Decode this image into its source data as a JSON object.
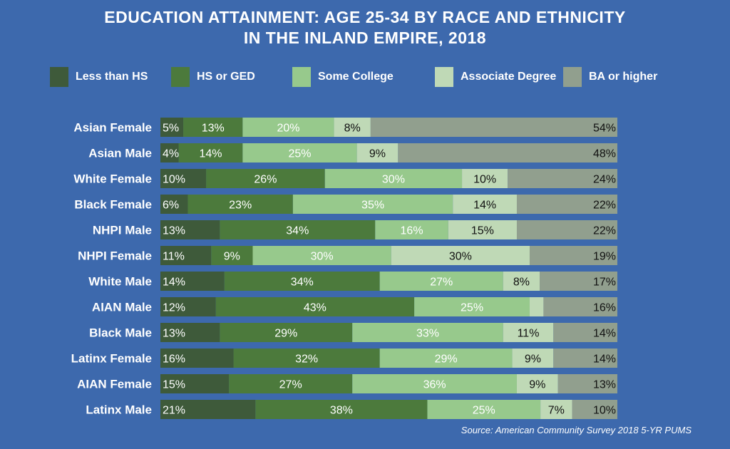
{
  "title_line1": "EDUCATION ATTAINMENT: AGE 25-34 BY RACE AND ETHNICITY",
  "title_line2": "IN THE INLAND EMPIRE, 2018",
  "source": "Source: American Community Survey 2018 5-YR PUMS",
  "colors": {
    "background": "#3d69ad",
    "Less than HS": "#3e5a3a",
    "HS or GED": "#4c7a3c",
    "Some College": "#97c98c",
    "Associate Degree": "#bfd9b6",
    "BA or higher": "#919f8e"
  },
  "chart_data": {
    "type": "bar",
    "orientation": "horizontal",
    "stacked": true,
    "title": "EDUCATION ATTAINMENT: AGE 25-34 BY RACE AND ETHNICITY IN THE INLAND EMPIRE, 2018",
    "legend_position": "top",
    "unit": "%",
    "categories": [
      "Asian Female",
      "Asian Male",
      "White Female",
      "Black Female",
      "NHPI Male",
      "NHPI Female",
      "White Male",
      "AIAN Male",
      "Black Male",
      "Latinx Female",
      "AIAN Female",
      "Latinx Male"
    ],
    "series": [
      {
        "name": "Less than HS",
        "values": [
          5,
          4,
          10,
          6,
          13,
          11,
          14,
          12,
          13,
          16,
          15,
          21
        ],
        "labels": [
          "5%",
          "4%",
          "10%",
          "6%",
          "13%",
          "11%",
          "14%",
          "12%",
          "13%",
          "16%",
          "15%",
          "21%"
        ]
      },
      {
        "name": "HS or GED",
        "values": [
          13,
          14,
          26,
          23,
          34,
          9,
          34,
          43,
          29,
          32,
          27,
          38
        ],
        "labels": [
          "13%",
          "14%",
          "26%",
          "23%",
          "34%",
          "9%",
          "34%",
          "43%",
          "29%",
          "32%",
          "27%",
          "38%"
        ]
      },
      {
        "name": "Some College",
        "values": [
          20,
          25,
          30,
          35,
          16,
          30,
          27,
          25,
          33,
          29,
          36,
          25
        ],
        "labels": [
          "20%",
          "25%",
          "30%",
          "35%",
          "16%",
          "30%",
          "27%",
          "25%",
          "33%",
          "29%",
          "36%",
          "25%"
        ]
      },
      {
        "name": "Associate Degree",
        "values": [
          8,
          9,
          10,
          14,
          15,
          30,
          8,
          3,
          11,
          9,
          9,
          7
        ],
        "labels": [
          "8%",
          "9%",
          "10%",
          "14%",
          "15%",
          "30%",
          "8%",
          "",
          "11%",
          "9%",
          "9%",
          "7%"
        ]
      },
      {
        "name": "BA or higher",
        "values": [
          54,
          48,
          24,
          22,
          22,
          19,
          17,
          16,
          14,
          14,
          13,
          10
        ],
        "labels": [
          "54%",
          "48%",
          "24%",
          "22%",
          "22%",
          "19%",
          "17%",
          "16%",
          "14%",
          "14%",
          "13%",
          "10%"
        ]
      }
    ],
    "xlim": [
      0,
      100
    ],
    "grid": false
  }
}
